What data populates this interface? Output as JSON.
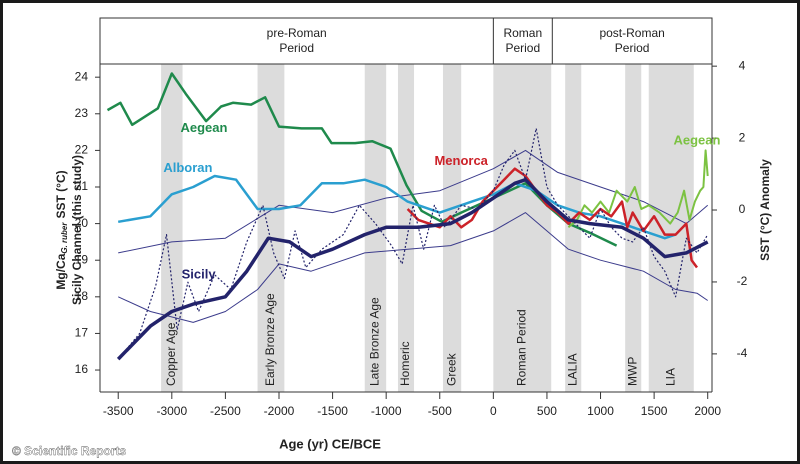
{
  "chart_data": {
    "type": "line",
    "periods": [
      {
        "label": [
          "pre-Roman",
          "Period"
        ],
        "range": [
          -3670,
          0
        ]
      },
      {
        "label": [
          "Roman",
          "Period"
        ],
        "range": [
          0,
          550
        ]
      },
      {
        "label": [
          "post-Roman",
          "Period"
        ],
        "range": [
          550,
          2040
        ]
      }
    ],
    "bands": [
      {
        "label": "Copper Age",
        "range": [
          -3100,
          -2900
        ]
      },
      {
        "label": "Early Bronze Age",
        "range": [
          -2200,
          -1950
        ]
      },
      {
        "label": "Late Bronze Age",
        "range": [
          -1200,
          -1000
        ]
      },
      {
        "label": "Homeric",
        "range": [
          -890,
          -740
        ]
      },
      {
        "label": "Greek",
        "range": [
          -470,
          -300
        ]
      },
      {
        "label": "Roman Period",
        "range": [
          0,
          540
        ]
      },
      {
        "label": "LALIA",
        "range": [
          670,
          820
        ]
      },
      {
        "label": "MWP",
        "range": [
          1230,
          1380
        ]
      },
      {
        "label": "LIA",
        "range": [
          1450,
          1870
        ]
      }
    ],
    "band_color": "#dcdcdc",
    "y_label": [
      "Mg/Ca",
      "G. ruber",
      "SST (°C)"
    ],
    "y_label_2": "Sicily Channel (this study)",
    "y2_label": "SST (°C) Anomaly",
    "x_label": "Age (yr) CE/BCE",
    "source": "© Scientific Reports",
    "xlim": [
      -3670,
      2040
    ],
    "xticks": [
      -3500,
      -3000,
      -2500,
      -2000,
      -1500,
      -1000,
      -500,
      0,
      500,
      1000,
      1500,
      2000
    ],
    "ylim": [
      15.4,
      24.36
    ],
    "yticks": [
      16,
      17,
      18,
      19,
      20,
      21,
      22,
      23,
      24
    ],
    "y2lim": [
      -5.06,
      4.06
    ],
    "y2ticks": [
      -4,
      -2,
      0,
      2,
      4
    ],
    "series": [
      {
        "color": "#3c3c8c",
        "width": 1,
        "x": [
          -3500,
          -3000,
          -2500,
          -2000,
          -1500,
          -1000,
          -500,
          0,
          300,
          600,
          1000,
          1400,
          1800,
          2000
        ],
        "values": [
          19.2,
          19.5,
          19.6,
          20.5,
          20.3,
          20.7,
          20.9,
          21.5,
          22.0,
          21.4,
          21.0,
          20.6,
          20.0,
          20.5
        ]
      },
      {
        "color": "#3c3c8c",
        "width": 1,
        "x": [
          -3500,
          -3200,
          -2800,
          -2500,
          -2200,
          -2000,
          -1700,
          -1200,
          -800,
          -400,
          0,
          300,
          700,
          1000,
          1400,
          1700,
          1900,
          2000
        ],
        "values": [
          18.0,
          17.6,
          17.3,
          17.6,
          18.2,
          18.9,
          18.7,
          19.2,
          19.3,
          19.4,
          19.8,
          20.3,
          19.3,
          19.0,
          18.7,
          18.2,
          18.1,
          17.9
        ]
      },
      {
        "name": "Aegean",
        "color": "#1f8a4c",
        "width": 2.5,
        "label_at": [
          -2700,
          22.6
        ],
        "x": [
          -3600,
          -3480,
          -3370,
          -3130,
          -3000,
          -2870,
          -2680,
          -2540,
          -2430,
          -2260,
          -2130,
          -2000,
          -1790,
          -1600,
          -1510,
          -1290,
          -1130,
          -960,
          -810,
          -670,
          -480,
          -300,
          0,
          300,
          500,
          700,
          900,
          1150
        ],
        "values": [
          23.1,
          23.3,
          22.7,
          23.15,
          24.1,
          23.55,
          22.8,
          23.2,
          23.3,
          23.25,
          23.45,
          22.65,
          22.6,
          22.6,
          22.2,
          22.2,
          22.25,
          22.05,
          21.05,
          20.35,
          20.05,
          20.3,
          20.7,
          21.1,
          20.5,
          20.0,
          19.75,
          19.4
        ]
      },
      {
        "name": "Alboran",
        "color": "#2a9fd0",
        "width": 2.5,
        "label_at": [
          -2850,
          21.5
        ],
        "x": [
          -3500,
          -3200,
          -3000,
          -2800,
          -2600,
          -2400,
          -2200,
          -2000,
          -1800,
          -1600,
          -1400,
          -1200,
          -1000,
          -800,
          -500,
          -200,
          0,
          200,
          400,
          600,
          800,
          1000,
          1200,
          1400,
          1600,
          1700
        ],
        "values": [
          20.05,
          20.2,
          20.8,
          21.0,
          21.3,
          21.2,
          20.4,
          20.4,
          20.5,
          21.1,
          21.1,
          21.2,
          21.0,
          20.6,
          20.3,
          20.6,
          20.8,
          21.1,
          20.9,
          20.5,
          20.3,
          20.2,
          20.0,
          19.8,
          19.6,
          19.7
        ]
      },
      {
        "name": "Aegean",
        "color": "#7cc242",
        "width": 2,
        "label_at": [
          1900,
          22.25
        ],
        "x": [
          700,
          780,
          850,
          920,
          1000,
          1080,
          1150,
          1250,
          1320,
          1380,
          1450,
          1550,
          1650,
          1720,
          1780,
          1830,
          1880,
          1930,
          1960,
          1980,
          2000
        ],
        "values": [
          19.9,
          20.1,
          20.5,
          20.3,
          20.6,
          20.3,
          20.9,
          20.6,
          21.0,
          20.4,
          20.5,
          20.3,
          20.0,
          20.3,
          20.9,
          20.1,
          20.6,
          20.9,
          21.0,
          22.0,
          21.3
        ]
      },
      {
        "name": "Menorca",
        "color": "#cc2229",
        "width": 2.5,
        "label_at": [
          -300,
          21.7
        ],
        "x": [
          -800,
          -700,
          -600,
          -500,
          -400,
          -300,
          -200,
          -100,
          0,
          100,
          200,
          300,
          400,
          500,
          600,
          700,
          800,
          900,
          1000,
          1100,
          1200,
          1250,
          1300,
          1400,
          1500,
          1600,
          1700,
          1800,
          1850,
          1900
        ],
        "values": [
          20.4,
          20.1,
          20.0,
          19.9,
          20.2,
          19.9,
          20.1,
          20.6,
          20.9,
          21.2,
          21.5,
          21.3,
          20.9,
          20.5,
          20.3,
          20.0,
          20.3,
          20.1,
          20.4,
          20.2,
          20.6,
          19.9,
          20.3,
          19.8,
          20.2,
          19.7,
          19.7,
          20.0,
          19.0,
          18.8
        ]
      },
      {
        "color": "#23236b",
        "width": 1.2,
        "dash": "2,2",
        "x": [
          -3500,
          -3300,
          -3150,
          -3050,
          -2950,
          -2850,
          -2750,
          -2600,
          -2450,
          -2300,
          -2150,
          -2050,
          -1950,
          -1850,
          -1750,
          -1600,
          -1400,
          -1250,
          -1100,
          -950,
          -850,
          -750,
          -650,
          -550,
          -450,
          -300,
          -150,
          0,
          100,
          200,
          300,
          400,
          500,
          600,
          700,
          800,
          900,
          1000,
          1100,
          1200,
          1300,
          1400,
          1500,
          1600,
          1700,
          1800,
          1900,
          2000
        ],
        "values": [
          16.3,
          17.0,
          18.3,
          19.7,
          17.1,
          18.4,
          17.6,
          18.6,
          18.2,
          19.5,
          20.5,
          19.2,
          18.5,
          19.8,
          18.8,
          19.3,
          19.7,
          20.5,
          20.0,
          19.4,
          18.9,
          20.5,
          19.3,
          20.5,
          19.9,
          20.5,
          20.4,
          20.9,
          21.6,
          22.0,
          21.2,
          22.6,
          21.0,
          20.5,
          20.2,
          19.9,
          19.6,
          20.4,
          19.9,
          19.6,
          19.5,
          19.9,
          19.1,
          18.7,
          18.0,
          19.6,
          19.2,
          19.7
        ]
      },
      {
        "name": "Sicily",
        "color": "#23236b",
        "width": 3.5,
        "label_at": [
          -2750,
          18.6
        ],
        "x": [
          -3500,
          -3200,
          -3000,
          -2800,
          -2500,
          -2300,
          -2100,
          -1900,
          -1700,
          -1500,
          -1200,
          -1000,
          -700,
          -400,
          -200,
          0,
          200,
          300,
          500,
          700,
          900,
          1200,
          1400,
          1600,
          1800,
          2000
        ],
        "values": [
          16.3,
          17.2,
          17.6,
          17.8,
          18.0,
          18.7,
          19.6,
          19.5,
          19.1,
          19.3,
          19.7,
          19.9,
          19.9,
          20.0,
          20.3,
          20.7,
          21.1,
          21.2,
          20.6,
          20.1,
          20.0,
          19.9,
          19.6,
          19.1,
          19.2,
          19.5
        ]
      }
    ]
  }
}
